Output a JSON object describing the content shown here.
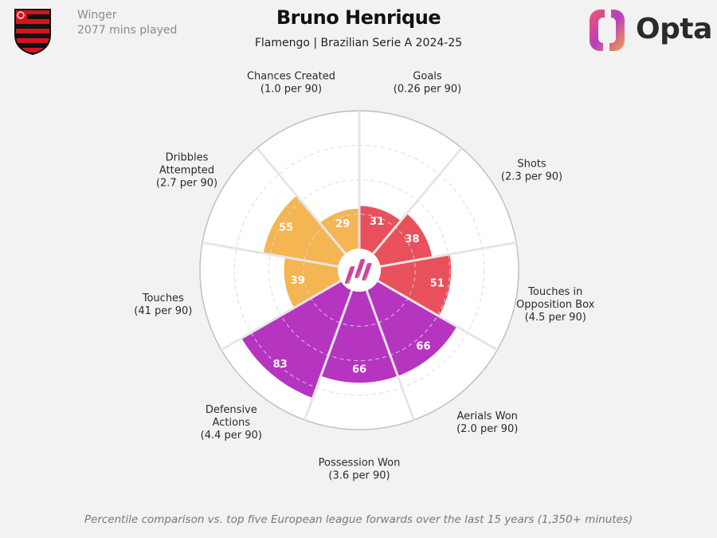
{
  "header": {
    "position": "Winger",
    "minutes": "2077 mins played",
    "player_name": "Bruno Henrique",
    "subtitle": "Flamengo | Brazilian Serie A 2024-25",
    "brand": "Opta",
    "crest_icon": "flamengo-crest-icon"
  },
  "footnote": "Percentile comparison vs. top five European league forwards over the last 15 years (1,350+ minutes)",
  "colors": {
    "attacking": "#e8505b",
    "possession": "#f5b553",
    "defending": "#b534c0",
    "background": "#f2f2f2"
  },
  "chart_data": {
    "type": "radial-bar",
    "range": [
      0,
      100
    ],
    "grid": true,
    "categories": [
      {
        "name": "Goals",
        "line1": "Goals",
        "line2": "",
        "per90": "(0.26 per 90)",
        "value": 31,
        "group": "attacking"
      },
      {
        "name": "Shots",
        "line1": "Shots",
        "line2": "",
        "per90": "(2.3 per 90)",
        "value": 38,
        "group": "attacking"
      },
      {
        "name": "Touches in Opposition Box",
        "line1": "Touches in",
        "line2": "Opposition Box",
        "per90": "(4.5 per 90)",
        "value": 51,
        "group": "attacking"
      },
      {
        "name": "Aerials Won",
        "line1": "Aerials Won",
        "line2": "",
        "per90": "(2.0 per 90)",
        "value": 66,
        "group": "defending"
      },
      {
        "name": "Possession Won",
        "line1": "Possession Won",
        "line2": "",
        "per90": "(3.6 per 90)",
        "value": 66,
        "group": "defending"
      },
      {
        "name": "Defensive Actions",
        "line1": "Defensive",
        "line2": "Actions",
        "per90": "(4.4 per 90)",
        "value": 83,
        "group": "defending"
      },
      {
        "name": "Touches",
        "line1": "Touches",
        "line2": "",
        "per90": "(41 per 90)",
        "value": 39,
        "group": "possession"
      },
      {
        "name": "Dribbles Attempted",
        "line1": "Dribbles",
        "line2": "Attempted",
        "per90": "(2.7 per 90)",
        "value": 55,
        "group": "possession"
      },
      {
        "name": "Chances Created",
        "line1": "Chances Created",
        "line2": "",
        "per90": "(1.0 per 90)",
        "value": 29,
        "group": "possession"
      }
    ]
  }
}
